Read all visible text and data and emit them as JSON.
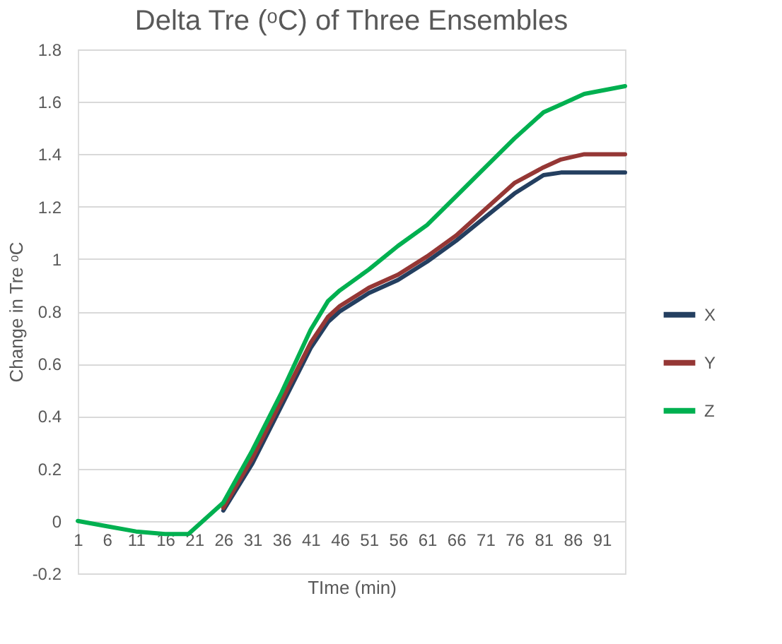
{
  "chart_data": {
    "type": "line",
    "title": "Delta Tre (ᵒC) of Three Ensembles",
    "xlabel": "TIme (min)",
    "ylabel": "Change in Tre ᵒC",
    "x": [
      1,
      6,
      11,
      16,
      20,
      22,
      26,
      31,
      36,
      41,
      44,
      46,
      51,
      56,
      61,
      66,
      71,
      76,
      81,
      84,
      88,
      95
    ],
    "series": [
      {
        "name": "X",
        "color": "#243f60",
        "values": [
          null,
          null,
          null,
          null,
          null,
          null,
          0.04,
          0.22,
          0.44,
          0.66,
          0.76,
          0.8,
          0.87,
          0.92,
          0.99,
          1.07,
          1.16,
          1.25,
          1.32,
          1.33,
          1.33,
          1.33
        ]
      },
      {
        "name": "Y",
        "color": "#953735",
        "values": [
          null,
          null,
          null,
          null,
          null,
          null,
          0.05,
          0.24,
          0.46,
          0.68,
          0.78,
          0.82,
          0.89,
          0.94,
          1.01,
          1.09,
          1.19,
          1.29,
          1.35,
          1.38,
          1.4,
          1.4
        ]
      },
      {
        "name": "Z",
        "color": "#00b050",
        "values": [
          0,
          -0.02,
          -0.04,
          -0.05,
          -0.05,
          -0.01,
          0.07,
          0.27,
          0.49,
          0.73,
          0.84,
          0.88,
          0.96,
          1.05,
          1.13,
          1.24,
          1.35,
          1.46,
          1.56,
          1.59,
          1.63,
          1.66
        ]
      }
    ],
    "xlim": [
      1,
      95
    ],
    "xticks": [
      1,
      6,
      11,
      16,
      21,
      26,
      31,
      36,
      41,
      46,
      51,
      56,
      61,
      66,
      71,
      76,
      81,
      86,
      91
    ],
    "ylim": [
      -0.2,
      1.8
    ],
    "yticks": [
      -0.2,
      0,
      0.2,
      0.4,
      0.6,
      0.8,
      1,
      1.2,
      1.4,
      1.6,
      1.8
    ],
    "grid": "y",
    "legend": "right",
    "line_style": "solid",
    "marker": "none"
  }
}
